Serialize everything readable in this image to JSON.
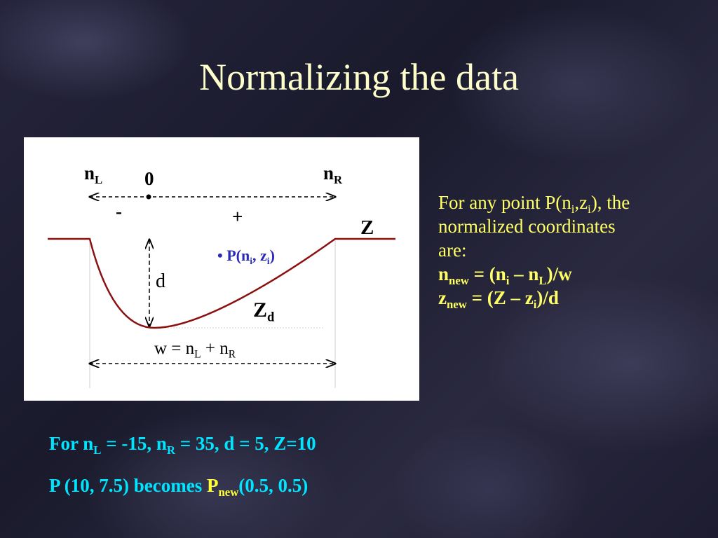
{
  "title": "Normalizing the data",
  "diagram": {
    "nL": "n",
    "nL_sub": "L",
    "zero": "0",
    "nR": "n",
    "nR_sub": "R",
    "minus": "-",
    "plus": "+",
    "Z": "Z",
    "d": "d",
    "Zd": "Z",
    "Zd_sub": "d",
    "bullet": "•",
    "point_prefix": "P(n",
    "point_i1": "i",
    "point_mid": ", z",
    "point_i2": "i",
    "point_suffix": ")",
    "w_prefix": "w = n",
    "w_sub1": "L",
    "w_mid": " + n",
    "w_sub2": "R"
  },
  "explanation": {
    "l1_a": "For any point P(n",
    "l1_sub1": "i",
    "l1_b": ",z",
    "l1_sub2": "i",
    "l1_c": "), the",
    "l2": "normalized coordinates",
    "l3": "are:",
    "f1_a": "n",
    "f1_sub1": "new",
    "f1_b": " = (n",
    "f1_sub2": "i",
    "f1_c": " – n",
    "f1_sub3": "L",
    "f1_d": ")/w",
    "f2_a": "z",
    "f2_sub1": "new",
    "f2_b": " = (Z – z",
    "f2_sub2": "i",
    "f2_c": ")/d"
  },
  "example": {
    "l1_a": "For n",
    "l1_sub1": "L",
    "l1_b": " = -15, n",
    "l1_sub2": "R",
    "l1_c": " = 35, d = 5, Z=10",
    "l2_a": "P (10, 7.5) becomes ",
    "l2_b": "P",
    "l2_sub": "new",
    "l2_c": "(0.5, 0.5)"
  },
  "colors": {
    "title": "#ffffcc",
    "curve": "#8b1010",
    "point_label": "#2b2bb8",
    "explanation_text": "#ffff66",
    "example_text": "#00e5ff",
    "example_highlight": "#ffff33"
  }
}
